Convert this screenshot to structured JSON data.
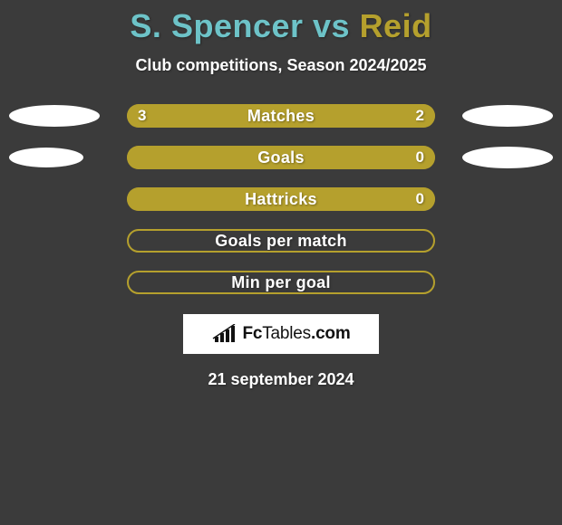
{
  "title": {
    "left_name": "S. Spencer",
    "vs": " vs ",
    "right_name": "Reid",
    "left_color": "#6dc3c8",
    "right_color": "#b5a02d"
  },
  "subtitle": "Club competitions, Season 2024/2025",
  "colors": {
    "background": "#3b3b3b",
    "bar_border": "#b5a02d",
    "bar_fill": "#b5a02d",
    "bar_empty_border": "#b5a02d",
    "text": "#ffffff"
  },
  "bars": [
    {
      "label": "Matches",
      "left_value": "3",
      "right_value": "2",
      "left_fill_pct": 100,
      "show_left_ellipse": true,
      "show_right_ellipse": true,
      "left_ellipse_narrow": false,
      "right_ellipse_narrow": false
    },
    {
      "label": "Goals",
      "left_value": "",
      "right_value": "0",
      "left_fill_pct": 100,
      "show_left_ellipse": true,
      "show_right_ellipse": true,
      "left_ellipse_narrow": true,
      "right_ellipse_narrow": false
    },
    {
      "label": "Hattricks",
      "left_value": "",
      "right_value": "0",
      "left_fill_pct": 100,
      "show_left_ellipse": false,
      "show_right_ellipse": false,
      "left_ellipse_narrow": false,
      "right_ellipse_narrow": false
    },
    {
      "label": "Goals per match",
      "left_value": "",
      "right_value": "",
      "left_fill_pct": 0,
      "show_left_ellipse": false,
      "show_right_ellipse": false,
      "left_ellipse_narrow": false,
      "right_ellipse_narrow": false
    },
    {
      "label": "Min per goal",
      "left_value": "",
      "right_value": "",
      "left_fill_pct": 0,
      "show_left_ellipse": false,
      "show_right_ellipse": false,
      "left_ellipse_narrow": false,
      "right_ellipse_narrow": false
    }
  ],
  "logo": {
    "text_a": "Fc",
    "text_b": "Tables",
    "text_c": ".com"
  },
  "date": "21 september 2024"
}
